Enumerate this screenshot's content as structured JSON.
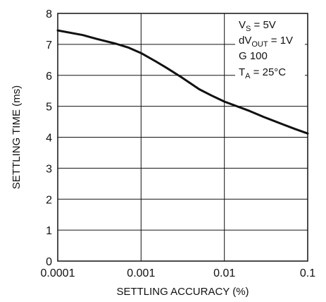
{
  "chart_data": {
    "type": "line",
    "title": "",
    "xlabel": "SETTLING ACCURACY (%)",
    "ylabel": "SETTLING TIME (ms)",
    "x_scale": "log",
    "xlim": [
      0.0001,
      0.1
    ],
    "ylim": [
      0,
      8
    ],
    "grid": true,
    "x_tick_labels": [
      "0.0001",
      "0.001",
      "0.01",
      "0.1"
    ],
    "y_tick_labels": [
      "0",
      "1",
      "2",
      "3",
      "4",
      "5",
      "6",
      "7",
      "8"
    ],
    "series": [
      {
        "x": [
          0.0001,
          0.0002,
          0.0003,
          0.0005,
          0.0007,
          0.001,
          0.0015,
          0.002,
          0.003,
          0.005,
          0.007,
          0.01,
          0.02,
          0.03,
          0.05,
          0.07,
          0.1
        ],
        "y": [
          7.45,
          7.3,
          7.17,
          7.02,
          6.9,
          6.72,
          6.45,
          6.25,
          5.95,
          5.55,
          5.35,
          5.15,
          4.85,
          4.65,
          4.42,
          4.27,
          4.12
        ]
      }
    ],
    "annotations": [
      {
        "main": "V",
        "sub": "S",
        "rest": " = 5V"
      },
      {
        "main": "dV",
        "sub": "OUT",
        "rest": " = 1V"
      },
      {
        "main": "G  100",
        "sub": "",
        "rest": ""
      },
      {
        "main": "T",
        "sub": "A",
        "rest": " = 25°C"
      }
    ],
    "line_color": "#111111"
  }
}
